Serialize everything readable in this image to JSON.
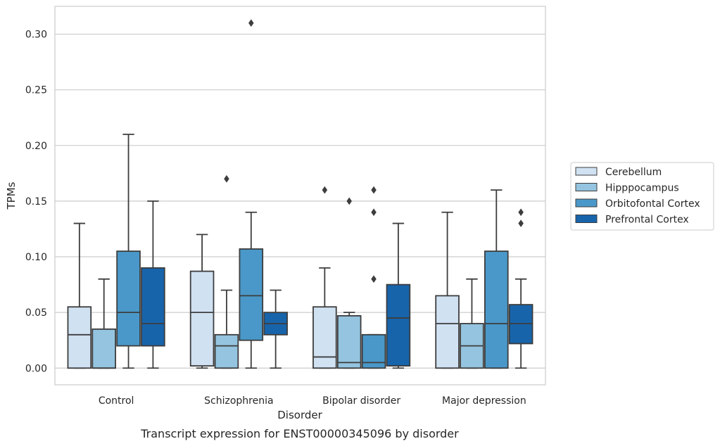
{
  "chart_data": {
    "type": "boxplot",
    "caption": "Transcript expression for ENST00000345096 by disorder",
    "xlabel": "Disorder",
    "ylabel": "TPMs",
    "ylim": [
      -0.015,
      0.325
    ],
    "yticks": [
      "0.00",
      "0.05",
      "0.10",
      "0.15",
      "0.20",
      "0.25",
      "0.30"
    ],
    "ytick_values": [
      0,
      0.05,
      0.1,
      0.15,
      0.2,
      0.25,
      0.3
    ],
    "grid": true,
    "legend_position": "right",
    "categories": [
      "Control",
      "Schizophrenia",
      "Bipolar disorder",
      "Major depression"
    ],
    "series": [
      {
        "name": "Cerebellum",
        "color": "#d0e1f2",
        "boxes": [
          {
            "min": 0,
            "q1": 0,
            "median": 0.03,
            "q3": 0.055,
            "max": 0.13,
            "outliers": []
          },
          {
            "min": 0,
            "q1": 0.002,
            "median": 0.05,
            "q3": 0.087,
            "max": 0.12,
            "outliers": []
          },
          {
            "min": 0,
            "q1": 0,
            "median": 0.01,
            "q3": 0.055,
            "max": 0.09,
            "outliers": [
              0.16
            ]
          },
          {
            "min": 0,
            "q1": 0,
            "median": 0.04,
            "q3": 0.065,
            "max": 0.14,
            "outliers": []
          }
        ]
      },
      {
        "name": "Hipppocampus",
        "color": "#94c4df",
        "boxes": [
          {
            "min": 0,
            "q1": 0,
            "median": 0,
            "q3": 0.035,
            "max": 0.08,
            "outliers": []
          },
          {
            "min": 0,
            "q1": 0,
            "median": 0.02,
            "q3": 0.03,
            "max": 0.07,
            "outliers": [
              0.17
            ]
          },
          {
            "min": 0,
            "q1": 0,
            "median": 0.005,
            "q3": 0.047,
            "max": 0.05,
            "outliers": [
              0.15
            ]
          },
          {
            "min": 0,
            "q1": 0,
            "median": 0.02,
            "q3": 0.04,
            "max": 0.08,
            "outliers": []
          }
        ]
      },
      {
        "name": "Orbitofontal Cortex",
        "color": "#4a98c9",
        "boxes": [
          {
            "min": 0,
            "q1": 0.02,
            "median": 0.05,
            "q3": 0.105,
            "max": 0.21,
            "outliers": []
          },
          {
            "min": 0,
            "q1": 0.025,
            "median": 0.065,
            "q3": 0.107,
            "max": 0.14,
            "outliers": [
              0.31
            ]
          },
          {
            "min": 0,
            "q1": 0,
            "median": 0.005,
            "q3": 0.03,
            "max": 0.03,
            "outliers": [
              0.08,
              0.14,
              0.16
            ]
          },
          {
            "min": 0,
            "q1": 0,
            "median": 0.04,
            "q3": 0.105,
            "max": 0.16,
            "outliers": []
          }
        ]
      },
      {
        "name": "Prefrontal Cortex",
        "color": "#1764ab",
        "boxes": [
          {
            "min": 0,
            "q1": 0.02,
            "median": 0.04,
            "q3": 0.09,
            "max": 0.15,
            "outliers": []
          },
          {
            "min": 0,
            "q1": 0.03,
            "median": 0.04,
            "q3": 0.05,
            "max": 0.07,
            "outliers": []
          },
          {
            "min": 0,
            "q1": 0.002,
            "median": 0.045,
            "q3": 0.075,
            "max": 0.13,
            "outliers": []
          },
          {
            "min": 0,
            "q1": 0.022,
            "median": 0.04,
            "q3": 0.057,
            "max": 0.08,
            "outliers": [
              0.13,
              0.14
            ]
          }
        ]
      }
    ]
  }
}
